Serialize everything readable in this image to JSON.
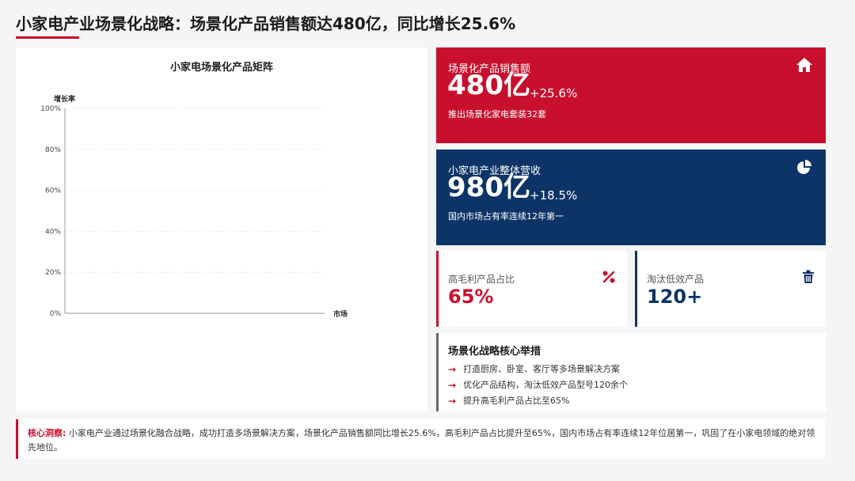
{
  "page": {
    "title": "小家电产业场景化战略：场景化产品销售额达480亿，同比增长25.6%"
  },
  "chart_data": {
    "type": "scatter",
    "title": "小家电场景化产品矩阵",
    "xlabel": "市场",
    "ylabel": "增长率",
    "ylim": [
      0,
      100
    ],
    "yticks": [
      "0%",
      "20%",
      "40%",
      "60%",
      "80%",
      "100%"
    ],
    "grid": true,
    "series": []
  },
  "kpis": [
    {
      "label": "场景化产品销售额",
      "value": "480亿",
      "growth": "+25.6%",
      "note": "推出场景化家电套装32套",
      "icon": "home-icon",
      "color": "#c8102e"
    },
    {
      "label": "小家电产业整体营收",
      "value": "980亿",
      "growth": "+18.5%",
      "note": "国内市场占有率连续12年第一",
      "icon": "pie-chart-icon",
      "color": "#0c3466"
    }
  ],
  "stats": [
    {
      "label": "高毛利产品占比",
      "value": "65%",
      "icon": "percent-icon",
      "color": "#c8102e"
    },
    {
      "label": "淘汰低效产品",
      "value": "120+",
      "icon": "trash-icon",
      "color": "#0c3466"
    }
  ],
  "measures": {
    "title": "场景化战略核心举措",
    "items": [
      "打造厨房、卧室、客厅等多场景解决方案",
      "优化产品结构，淘汰低效产品型号120余个",
      "提升高毛利产品占比至65%"
    ]
  },
  "insight": {
    "label": "核心洞察:",
    "text": "小家电产业通过场景化融合战略，成功打造多场景解决方案，场景化产品销售额同比增长25.6%，高毛利产品占比提升至65%，国内市场占有率连续12年位居第一，巩固了在小家电领域的绝对领先地位。"
  }
}
